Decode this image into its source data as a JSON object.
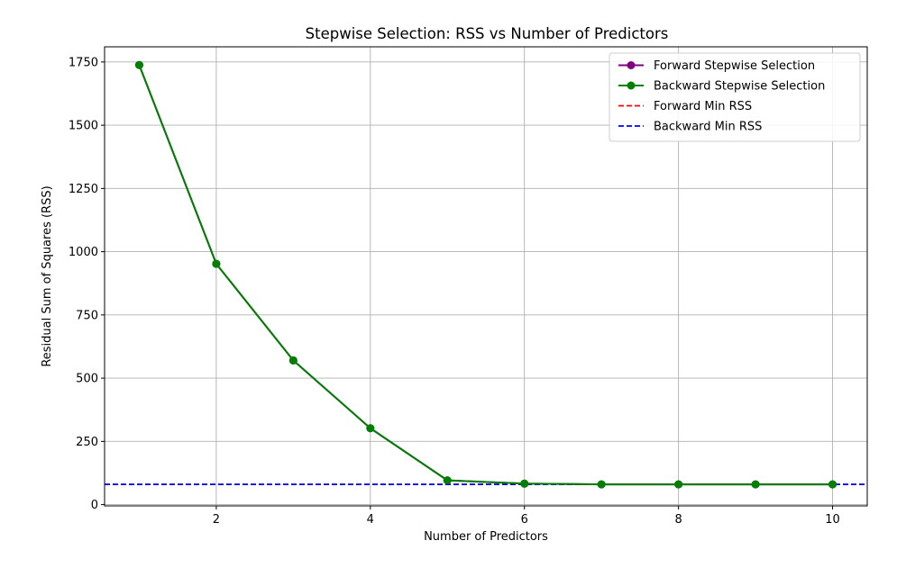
{
  "chart_data": {
    "type": "line",
    "title": "Stepwise Selection: RSS vs Number of Predictors",
    "xlabel": "Number of Predictors",
    "ylabel": "Residual Sum of Squares (RSS)",
    "xlim": [
      0.55,
      10.45
    ],
    "ylim": [
      -5,
      1810
    ],
    "xticks": [
      2,
      4,
      6,
      8,
      10
    ],
    "yticks": [
      0,
      250,
      500,
      750,
      1000,
      1250,
      1500,
      1750
    ],
    "grid": true,
    "legend_position": "top-right",
    "x": [
      1,
      2,
      3,
      4,
      5,
      6,
      7,
      8,
      9,
      10
    ],
    "series": [
      {
        "name": "Forward Stepwise Selection",
        "color": "#800080",
        "marker": "circle",
        "values": [
          1738,
          952,
          570,
          302,
          96,
          83,
          80,
          80,
          80,
          80
        ]
      },
      {
        "name": "Backward Stepwise Selection",
        "color": "#008000",
        "marker": "circle",
        "values": [
          1738,
          952,
          570,
          302,
          96,
          83,
          80,
          80,
          80,
          80
        ]
      }
    ],
    "reference_lines": [
      {
        "name": "Forward Min RSS",
        "color": "#ff0000",
        "style": "dashed",
        "y": 80
      },
      {
        "name": "Backward Min RSS",
        "color": "#0000ff",
        "style": "dashed",
        "y": 80
      }
    ]
  }
}
